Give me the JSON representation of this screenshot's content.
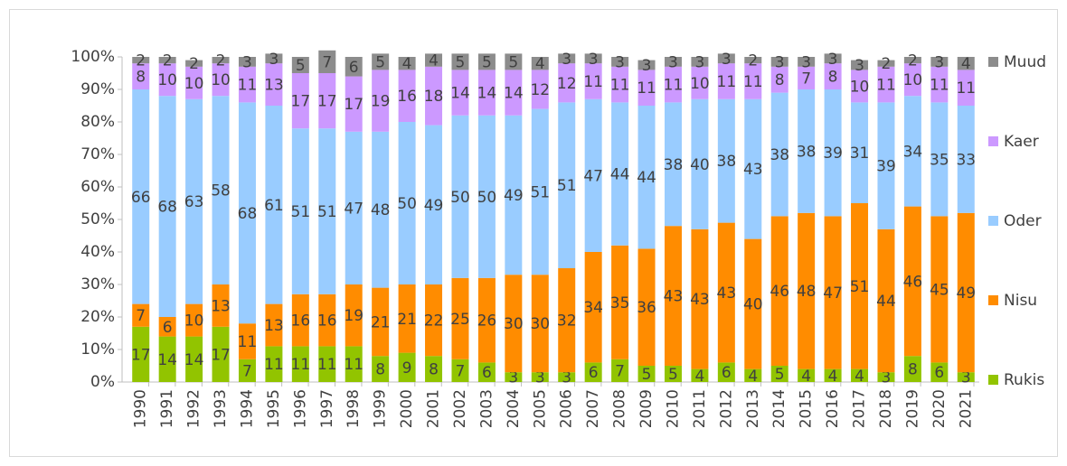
{
  "chart_data": {
    "type": "stacked_bar",
    "categories": [
      "1990",
      "1991",
      "1992",
      "1993",
      "1994",
      "1995",
      "1996",
      "1997",
      "1998",
      "1999",
      "2000",
      "2001",
      "2002",
      "2003",
      "2004",
      "2005",
      "2006",
      "2007",
      "2008",
      "2009",
      "2010",
      "2011",
      "2012",
      "2013",
      "2014",
      "2015",
      "2016",
      "2017",
      "2018",
      "2019",
      "2020",
      "2021"
    ],
    "series": [
      {
        "name": "Rukis",
        "color": "#92c400",
        "values": [
          17,
          14,
          14,
          17,
          7,
          11,
          11,
          11,
          11,
          8,
          9,
          8,
          7,
          6,
          3,
          3,
          3,
          6,
          7,
          5,
          5,
          4,
          6,
          4,
          5,
          4,
          4,
          4,
          3,
          8,
          6,
          3
        ]
      },
      {
        "name": "Nisu",
        "color": "#ff8c00",
        "values": [
          7,
          6,
          10,
          13,
          11,
          13,
          16,
          16,
          19,
          21,
          21,
          22,
          25,
          26,
          30,
          30,
          32,
          34,
          35,
          36,
          43,
          43,
          43,
          40,
          46,
          48,
          47,
          51,
          44,
          46,
          45,
          49
        ]
      },
      {
        "name": "Oder",
        "color": "#99ccff",
        "values": [
          66,
          68,
          63,
          58,
          68,
          61,
          51,
          51,
          47,
          48,
          50,
          49,
          50,
          50,
          49,
          51,
          51,
          47,
          44,
          44,
          38,
          40,
          38,
          43,
          38,
          38,
          39,
          31,
          39,
          34,
          35,
          33
        ]
      },
      {
        "name": "Kaer",
        "color": "#cc99ff",
        "values": [
          8,
          10,
          10,
          10,
          11,
          13,
          17,
          17,
          17,
          19,
          16,
          18,
          14,
          14,
          14,
          12,
          12,
          11,
          11,
          11,
          11,
          10,
          11,
          11,
          8,
          7,
          8,
          10,
          11,
          10,
          11,
          11
        ]
      },
      {
        "name": "Muud",
        "color": "#8c8c8c",
        "values": [
          2,
          2,
          2,
          2,
          3,
          3,
          5,
          7,
          6,
          5,
          4,
          4,
          5,
          5,
          5,
          4,
          3,
          3,
          3,
          3,
          3,
          3,
          3,
          2,
          3,
          3,
          3,
          3,
          2,
          2,
          3,
          4
        ]
      }
    ],
    "ylim": [
      0,
      100
    ],
    "yticks": [
      {
        "value": 0,
        "label": "0%"
      },
      {
        "value": 10,
        "label": "10%"
      },
      {
        "value": 20,
        "label": "20%"
      },
      {
        "value": 30,
        "label": "30%"
      },
      {
        "value": 40,
        "label": "40%"
      },
      {
        "value": 50,
        "label": "50%"
      },
      {
        "value": 60,
        "label": "60%"
      },
      {
        "value": 70,
        "label": "70%"
      },
      {
        "value": 80,
        "label": "80%"
      },
      {
        "value": 90,
        "label": "90%"
      },
      {
        "value": 100,
        "label": "100%"
      }
    ],
    "grid": false,
    "legend": "right"
  }
}
